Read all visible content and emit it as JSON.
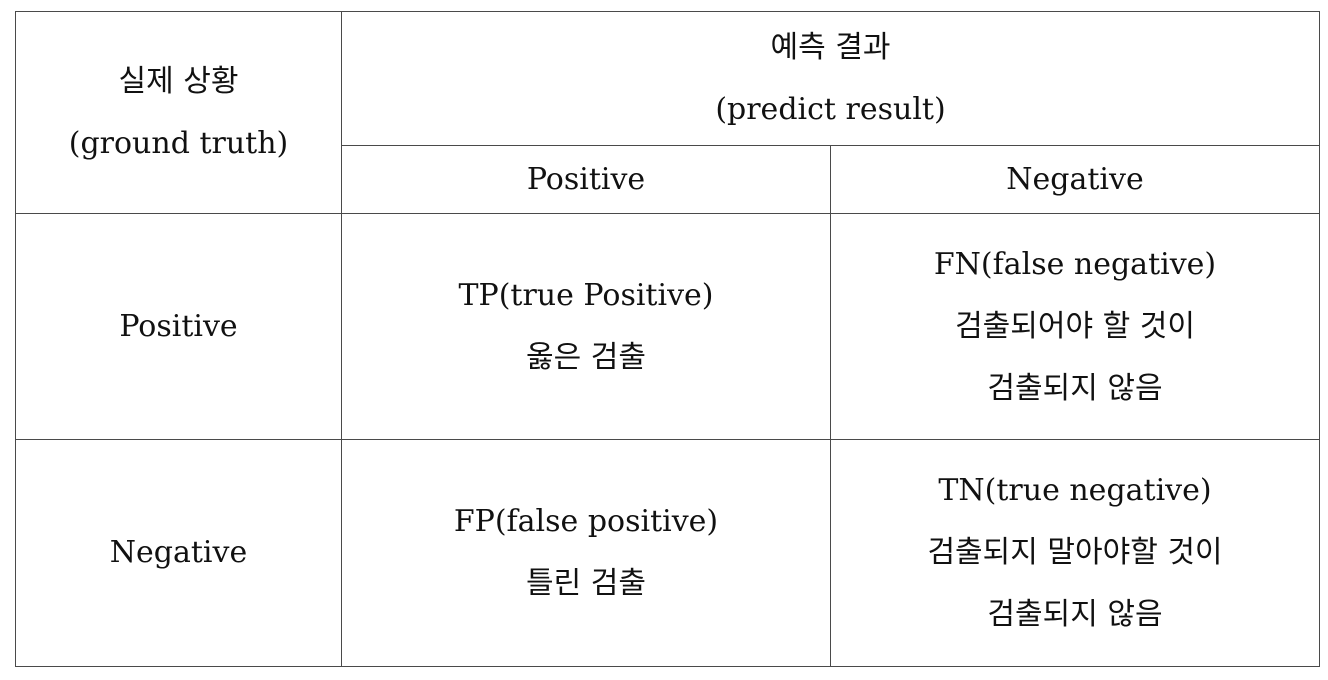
{
  "matrix": {
    "corner": {
      "line1": "실제 상황",
      "line2": "(ground truth)"
    },
    "predict_header": {
      "line1": "예측 결과",
      "line2": "(predict result)"
    },
    "pred_cols": [
      "Positive",
      "Negative"
    ],
    "rows": [
      {
        "label": "Positive",
        "cells": [
          [
            "TP(true Positive)",
            "옳은 검출"
          ],
          [
            "FN(false negative)",
            "검출되어야 할 것이",
            "검출되지 않음"
          ]
        ]
      },
      {
        "label": "Negative",
        "cells": [
          [
            "FP(false positive)",
            "틀린 검출"
          ],
          [
            "TN(true negative)",
            "검출되지 말아야할 것이",
            "검출되지 않음"
          ]
        ]
      }
    ]
  }
}
